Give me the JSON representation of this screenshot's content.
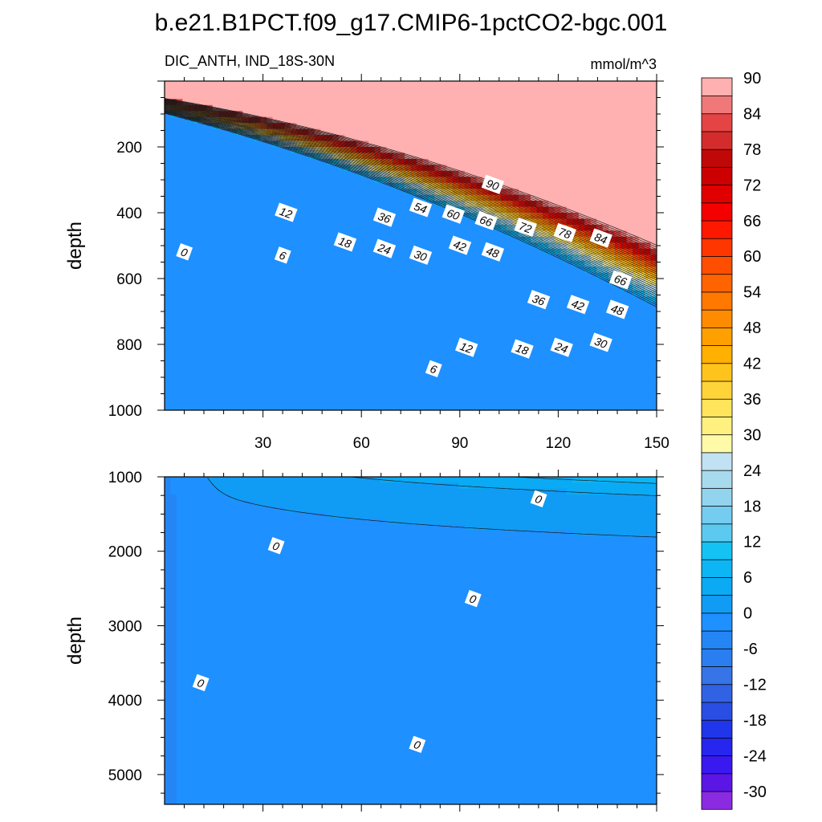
{
  "title": "b.e21.B1PCT.f09_g17.CMIP6-1pctCO2-bgc.001",
  "chart_data": [
    {
      "type": "heatmap",
      "variable": "DIC_ANTH, IND_18S-30N",
      "units": "mmol/m^3",
      "ylabel": "depth",
      "xlim": [
        0,
        150
      ],
      "ylim": [
        0,
        1000
      ],
      "y_inverted": true,
      "x_ticks": [
        "30",
        "60",
        "90",
        "120",
        "150"
      ],
      "y_ticks": [
        "200",
        "400",
        "600",
        "800",
        "1000"
      ],
      "contour_labels": [
        {
          "text": "90",
          "x": 100,
          "d": 315
        },
        {
          "text": "54",
          "x": 78,
          "d": 385
        },
        {
          "text": "60",
          "x": 88,
          "d": 405
        },
        {
          "text": "66",
          "x": 98,
          "d": 425
        },
        {
          "text": "72",
          "x": 110,
          "d": 445
        },
        {
          "text": "78",
          "x": 122,
          "d": 462
        },
        {
          "text": "84",
          "x": 133,
          "d": 478
        },
        {
          "text": "36",
          "x": 67,
          "d": 415
        },
        {
          "text": "12",
          "x": 37,
          "d": 400
        },
        {
          "text": "0",
          "x": 6,
          "d": 520
        },
        {
          "text": "6",
          "x": 36,
          "d": 530
        },
        {
          "text": "18",
          "x": 55,
          "d": 490
        },
        {
          "text": "24",
          "x": 67,
          "d": 510
        },
        {
          "text": "30",
          "x": 78,
          "d": 530
        },
        {
          "text": "42",
          "x": 90,
          "d": 500
        },
        {
          "text": "48",
          "x": 100,
          "d": 520
        },
        {
          "text": "66",
          "x": 139,
          "d": 605
        },
        {
          "text": "36",
          "x": 114,
          "d": 665
        },
        {
          "text": "42",
          "x": 126,
          "d": 680
        },
        {
          "text": "48",
          "x": 138,
          "d": 695
        },
        {
          "text": "12",
          "x": 92,
          "d": 810
        },
        {
          "text": "18",
          "x": 109,
          "d": 815
        },
        {
          "text": "24",
          "x": 121,
          "d": 810
        },
        {
          "text": "30",
          "x": 133,
          "d": 795
        },
        {
          "text": "6",
          "x": 82,
          "d": 875
        }
      ]
    },
    {
      "type": "heatmap",
      "ylabel": "depth",
      "xlim": [
        0,
        150
      ],
      "ylim": [
        1000,
        5400
      ],
      "y_inverted": true,
      "y_ticks": [
        "1000",
        "2000",
        "3000",
        "4000",
        "5000"
      ],
      "contour_labels": [
        {
          "text": "0",
          "x": 114,
          "d": 1300
        },
        {
          "text": "0",
          "x": 34,
          "d": 1930
        },
        {
          "text": "0",
          "x": 94,
          "d": 2640
        },
        {
          "text": "0",
          "x": 11,
          "d": 3770
        },
        {
          "text": "0",
          "x": 77,
          "d": 4600
        }
      ]
    }
  ],
  "colorbar": {
    "levels": [
      -30,
      -27,
      -24,
      -21,
      -18,
      -15,
      -12,
      -9,
      -6,
      -3,
      0,
      3,
      6,
      9,
      12,
      15,
      18,
      21,
      24,
      27,
      30,
      33,
      36,
      39,
      42,
      45,
      48,
      51,
      54,
      57,
      60,
      63,
      66,
      69,
      72,
      75,
      78,
      81,
      84,
      87,
      90
    ],
    "labels": [
      "90",
      "84",
      "78",
      "72",
      "66",
      "60",
      "54",
      "48",
      "42",
      "36",
      "30",
      "24",
      "18",
      "12",
      "6",
      "0",
      "-6",
      "-12",
      "-18",
      "-24",
      "-30"
    ],
    "colors": [
      "#8a2be2",
      "#5b16e6",
      "#3a18f0",
      "#2626ee",
      "#2036ea",
      "#2a4ee4",
      "#3262e4",
      "#3674e8",
      "#2a7ef0",
      "#2486f4",
      "#1e90ff",
      "#109cf4",
      "#0aaaf4",
      "#0cb6f4",
      "#14c2f4",
      "#5ccaf0",
      "#74ccf0",
      "#92d4ee",
      "#a8daee",
      "#c0e2f2",
      "#fffaa8",
      "#fff080",
      "#ffe45c",
      "#ffd438",
      "#ffc41c",
      "#ffb000",
      "#ffa000",
      "#ff8c00",
      "#ff7800",
      "#ff6400",
      "#ff4e00",
      "#ff3600",
      "#ff1800",
      "#f40000",
      "#e00000",
      "#cc0000",
      "#c00808",
      "#d42c2c",
      "#e44444",
      "#f07878",
      "#ffb0b0"
    ]
  }
}
